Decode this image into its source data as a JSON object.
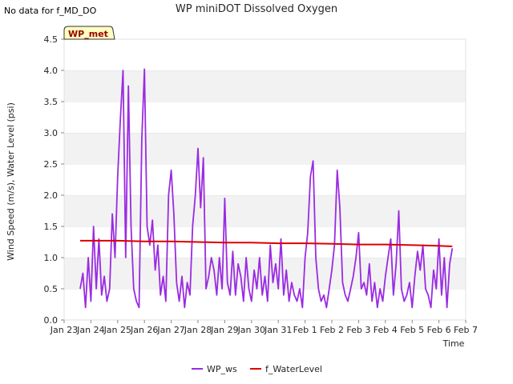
{
  "no_data_note": "No data for f_MD_DO",
  "site_badge": "WP_met",
  "chart_data": {
    "type": "line",
    "title": "WP miniDOT Dissolved Oxygen",
    "xlabel": "Time",
    "ylabel": "Wind Speed (m/s), Water Level (psi)",
    "x_ticks": [
      "Jan 23",
      "Jan 24",
      "Jan 25",
      "Jan 26",
      "Jan 27",
      "Jan 28",
      "Jan 29",
      "Jan 30",
      "Jan 31",
      "Feb 1",
      "Feb 2",
      "Feb 3",
      "Feb 4",
      "Feb 5",
      "Feb 6",
      "Feb 7"
    ],
    "xlim": [
      0,
      15
    ],
    "ylim": [
      0,
      4.5
    ],
    "y_ticks": [
      0.0,
      0.5,
      1.0,
      1.5,
      2.0,
      2.5,
      3.0,
      3.5,
      4.0,
      4.5
    ],
    "y_tick_labels": [
      "0.0",
      "0.5",
      "1.0",
      "1.5",
      "2.0",
      "2.5",
      "3.0",
      "3.5",
      "4.0",
      "4.5"
    ],
    "grid": "horizontal bands",
    "legend_position": "bottom-center",
    "series": [
      {
        "name": "WP_ws",
        "color": "#9a2be2",
        "x": [
          0.6,
          0.7,
          0.8,
          0.9,
          1.0,
          1.1,
          1.2,
          1.3,
          1.4,
          1.5,
          1.6,
          1.7,
          1.8,
          1.9,
          2.0,
          2.1,
          2.2,
          2.3,
          2.4,
          2.5,
          2.6,
          2.7,
          2.8,
          2.9,
          3.0,
          3.1,
          3.2,
          3.3,
          3.4,
          3.5,
          3.6,
          3.7,
          3.8,
          3.9,
          4.0,
          4.1,
          4.2,
          4.3,
          4.4,
          4.5,
          4.6,
          4.7,
          4.8,
          4.9,
          5.0,
          5.1,
          5.2,
          5.3,
          5.4,
          5.5,
          5.6,
          5.7,
          5.8,
          5.9,
          6.0,
          6.1,
          6.2,
          6.3,
          6.4,
          6.5,
          6.6,
          6.7,
          6.8,
          6.9,
          7.0,
          7.1,
          7.2,
          7.3,
          7.4,
          7.5,
          7.6,
          7.7,
          7.8,
          7.9,
          8.0,
          8.1,
          8.2,
          8.3,
          8.4,
          8.5,
          8.6,
          8.7,
          8.8,
          8.9,
          9.0,
          9.1,
          9.2,
          9.3,
          9.4,
          9.5,
          9.6,
          9.7,
          9.8,
          9.9,
          10.0,
          10.1,
          10.2,
          10.3,
          10.4,
          10.5,
          10.6,
          10.7,
          10.8,
          10.9,
          11.0,
          11.1,
          11.2,
          11.3,
          11.4,
          11.5,
          11.6,
          11.7,
          11.8,
          11.9,
          12.0,
          12.1,
          12.2,
          12.3,
          12.4,
          12.5,
          12.6,
          12.7,
          12.8,
          12.9,
          13.0,
          13.1,
          13.2,
          13.3,
          13.4,
          13.5,
          13.6,
          13.7,
          13.8,
          13.9,
          14.0,
          14.1,
          14.2,
          14.3,
          14.4,
          14.5
        ],
        "y": [
          0.5,
          0.75,
          0.2,
          1.0,
          0.3,
          1.5,
          0.5,
          1.3,
          0.4,
          0.7,
          0.3,
          0.5,
          1.7,
          1.0,
          2.3,
          3.2,
          4.0,
          1.0,
          3.75,
          1.5,
          0.5,
          0.3,
          0.2,
          2.9,
          4.02,
          1.5,
          1.2,
          1.6,
          0.8,
          1.2,
          0.4,
          0.7,
          0.3,
          2.0,
          2.4,
          1.7,
          0.6,
          0.3,
          0.7,
          0.2,
          0.6,
          0.4,
          1.5,
          2.0,
          2.75,
          1.8,
          2.6,
          0.5,
          0.7,
          1.0,
          0.8,
          0.4,
          1.0,
          0.5,
          1.95,
          0.6,
          0.4,
          1.1,
          0.4,
          0.9,
          0.7,
          0.3,
          1.0,
          0.5,
          0.3,
          0.8,
          0.5,
          1.0,
          0.4,
          0.7,
          0.3,
          1.2,
          0.6,
          0.9,
          0.5,
          1.3,
          0.4,
          0.8,
          0.3,
          0.6,
          0.4,
          0.3,
          0.5,
          0.2,
          1.0,
          1.4,
          2.3,
          2.55,
          1.0,
          0.5,
          0.3,
          0.4,
          0.2,
          0.5,
          0.8,
          1.2,
          2.4,
          1.8,
          0.6,
          0.4,
          0.3,
          0.5,
          0.7,
          1.0,
          1.4,
          0.5,
          0.6,
          0.4,
          0.9,
          0.3,
          0.6,
          0.2,
          0.5,
          0.3,
          0.7,
          1.0,
          1.3,
          0.4,
          0.9,
          1.75,
          0.5,
          0.3,
          0.4,
          0.6,
          0.2,
          0.7,
          1.1,
          0.8,
          1.2,
          0.5,
          0.4,
          0.2,
          0.8,
          0.5,
          1.3,
          0.4,
          1.0,
          0.2,
          0.9,
          1.15
        ]
      },
      {
        "name": "f_WaterLevel",
        "color": "#dd0000",
        "x": [
          0.6,
          2.0,
          3.0,
          4.0,
          5.0,
          6.0,
          7.0,
          8.0,
          9.0,
          10.0,
          11.0,
          12.0,
          13.0,
          14.0,
          14.5
        ],
        "y": [
          1.27,
          1.27,
          1.26,
          1.26,
          1.25,
          1.24,
          1.24,
          1.23,
          1.23,
          1.22,
          1.21,
          1.21,
          1.2,
          1.19,
          1.18
        ]
      }
    ]
  }
}
